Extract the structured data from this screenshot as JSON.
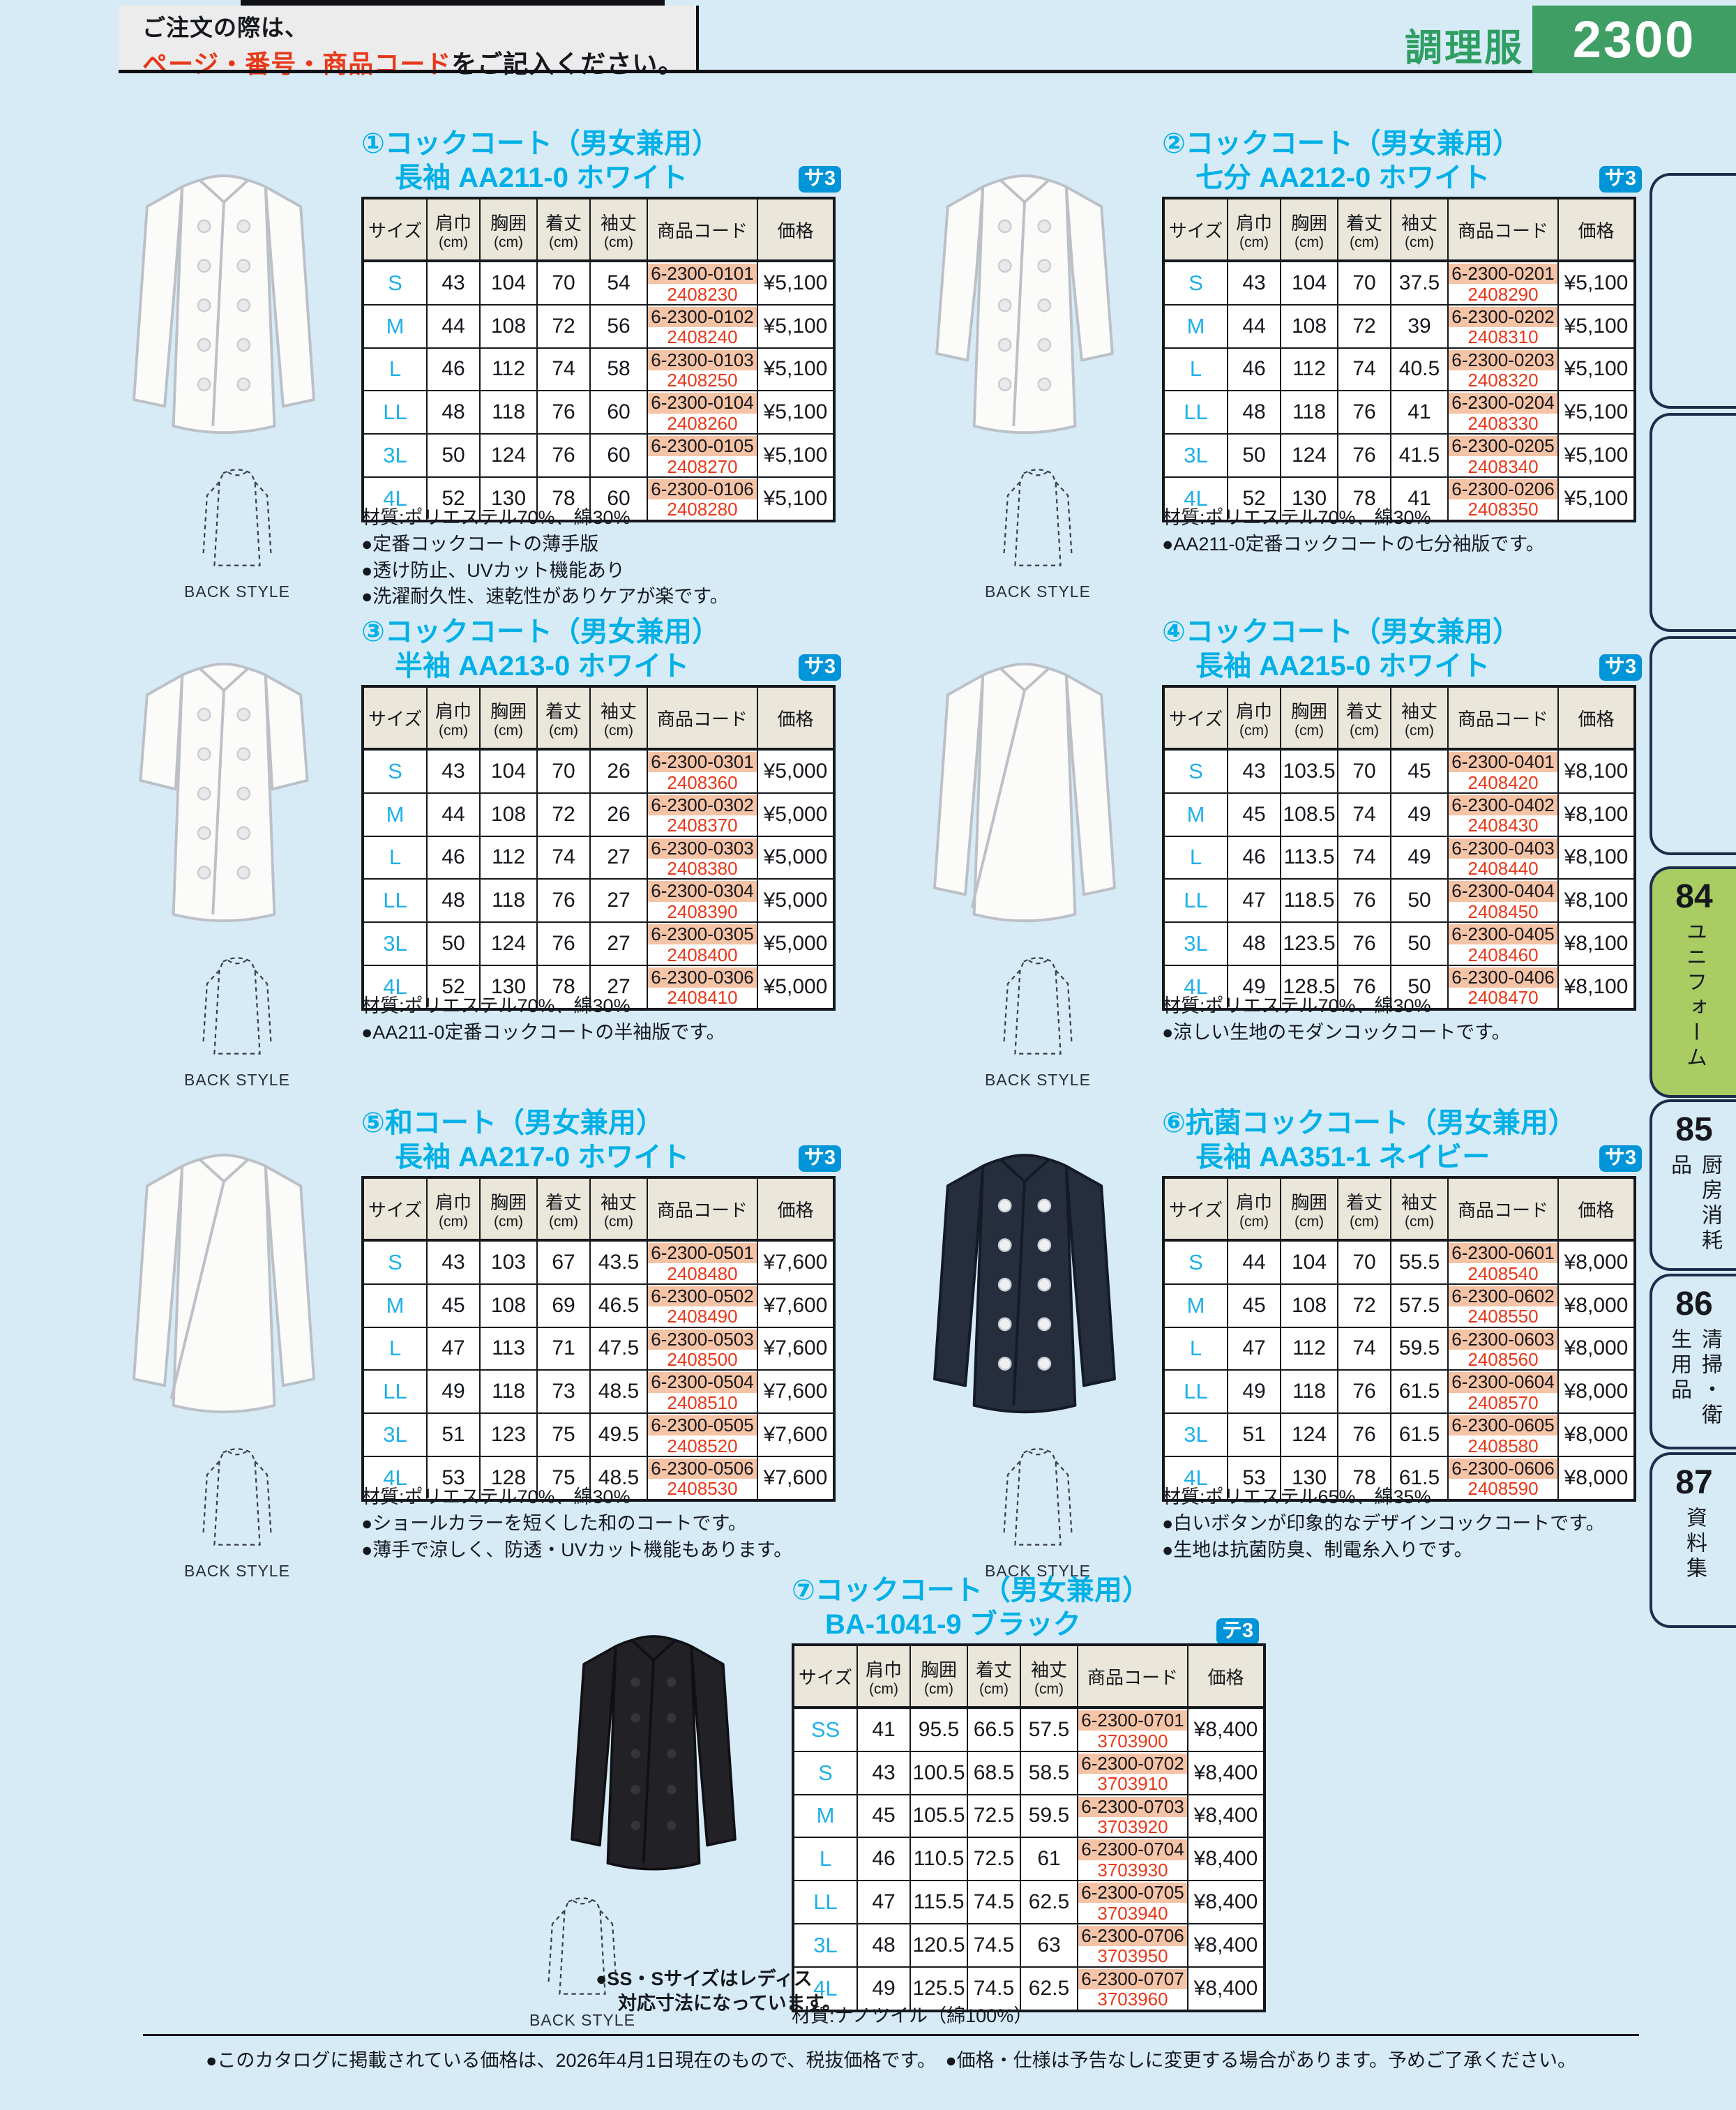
{
  "header": {
    "order_note_line1": "ご注文の際は、",
    "order_note_highlight": "ページ・番号・商品コード",
    "order_note_rest": "をご記入ください。",
    "category": "調理服",
    "page_number": "2300"
  },
  "colors": {
    "page_number_bg": "#3f9e63",
    "category_text": "#2f9e63",
    "title_accent": "#00b0e6",
    "badge_bg": "#0094d8",
    "code_highlight": "#f5c3a6",
    "code_red": "#e8381a",
    "tab_active_green": "#a9cc63",
    "page_bg": "#d7ebf7"
  },
  "sidebar": {
    "tabs": [
      {
        "number": "",
        "label": "",
        "active": false
      },
      {
        "number": "",
        "label": "",
        "active": false
      },
      {
        "number": "",
        "label": "",
        "active": false
      },
      {
        "number": "84",
        "label": "ユニフォーム",
        "active": true
      },
      {
        "number": "85",
        "label": "厨房消耗品",
        "active": false
      },
      {
        "number": "86",
        "label": "清掃・衛生用品",
        "active": false
      },
      {
        "number": "87",
        "label": "資料集",
        "active": false
      }
    ]
  },
  "table_headers": [
    {
      "label": "サイズ",
      "unit": ""
    },
    {
      "label": "肩巾",
      "unit": "(cm)"
    },
    {
      "label": "胸囲",
      "unit": "(cm)"
    },
    {
      "label": "着丈",
      "unit": "(cm)"
    },
    {
      "label": "袖丈",
      "unit": "(cm)"
    },
    {
      "label": "商品コード",
      "unit": ""
    },
    {
      "label": "価格",
      "unit": ""
    }
  ],
  "back_style_label": "BACK STYLE",
  "products": [
    {
      "number_title": "①コックコート（男女兼用）",
      "subtitle": "長袖 AA211-0 ホワイト",
      "badge": "サ3",
      "material": "材質:ポリエステル70%、綿30%",
      "notes": [
        "●定番コックコートの薄手版",
        "●透け防止、UVカット機能あり",
        "●洗濯耐久性、速乾性がありケアが楽です。"
      ],
      "photo": {
        "garment": "chef-coat",
        "color_name": "ホワイト",
        "color_hex": "#fbfbfa",
        "sleeve": "long",
        "closure": "double"
      },
      "rows": [
        {
          "size": "S",
          "shoulder": "43",
          "chest": "104",
          "length": "70",
          "sleeve": "54",
          "code1": "6-2300-0101",
          "code2": "2408230",
          "price": "¥5,100"
        },
        {
          "size": "M",
          "shoulder": "44",
          "chest": "108",
          "length": "72",
          "sleeve": "56",
          "code1": "6-2300-0102",
          "code2": "2408240",
          "price": "¥5,100"
        },
        {
          "size": "L",
          "shoulder": "46",
          "chest": "112",
          "length": "74",
          "sleeve": "58",
          "code1": "6-2300-0103",
          "code2": "2408250",
          "price": "¥5,100"
        },
        {
          "size": "LL",
          "shoulder": "48",
          "chest": "118",
          "length": "76",
          "sleeve": "60",
          "code1": "6-2300-0104",
          "code2": "2408260",
          "price": "¥5,100"
        },
        {
          "size": "3L",
          "shoulder": "50",
          "chest": "124",
          "length": "76",
          "sleeve": "60",
          "code1": "6-2300-0105",
          "code2": "2408270",
          "price": "¥5,100"
        },
        {
          "size": "4L",
          "shoulder": "52",
          "chest": "130",
          "length": "78",
          "sleeve": "60",
          "code1": "6-2300-0106",
          "code2": "2408280",
          "price": "¥5,100"
        }
      ]
    },
    {
      "number_title": "②コックコート（男女兼用）",
      "subtitle": "七分 AA212-0 ホワイト",
      "badge": "サ3",
      "material": "材質:ポリエステル70%、綿30%",
      "notes": [
        "●AA211-0定番コックコートの七分袖版です。"
      ],
      "photo": {
        "garment": "chef-coat",
        "color_name": "ホワイト",
        "color_hex": "#fbfbfa",
        "sleeve": "three-quarter",
        "closure": "double"
      },
      "rows": [
        {
          "size": "S",
          "shoulder": "43",
          "chest": "104",
          "length": "70",
          "sleeve": "37.5",
          "code1": "6-2300-0201",
          "code2": "2408290",
          "price": "¥5,100"
        },
        {
          "size": "M",
          "shoulder": "44",
          "chest": "108",
          "length": "72",
          "sleeve": "39",
          "code1": "6-2300-0202",
          "code2": "2408310",
          "price": "¥5,100"
        },
        {
          "size": "L",
          "shoulder": "46",
          "chest": "112",
          "length": "74",
          "sleeve": "40.5",
          "code1": "6-2300-0203",
          "code2": "2408320",
          "price": "¥5,100"
        },
        {
          "size": "LL",
          "shoulder": "48",
          "chest": "118",
          "length": "76",
          "sleeve": "41",
          "code1": "6-2300-0204",
          "code2": "2408330",
          "price": "¥5,100"
        },
        {
          "size": "3L",
          "shoulder": "50",
          "chest": "124",
          "length": "76",
          "sleeve": "41.5",
          "code1": "6-2300-0205",
          "code2": "2408340",
          "price": "¥5,100"
        },
        {
          "size": "4L",
          "shoulder": "52",
          "chest": "130",
          "length": "78",
          "sleeve": "41",
          "code1": "6-2300-0206",
          "code2": "2408350",
          "price": "¥5,100"
        }
      ]
    },
    {
      "number_title": "③コックコート（男女兼用）",
      "subtitle": "半袖 AA213-0 ホワイト",
      "badge": "サ3",
      "material": "材質:ポリエステル70%、綿30%",
      "notes": [
        "●AA211-0定番コックコートの半袖版です。"
      ],
      "photo": {
        "garment": "chef-coat",
        "color_name": "ホワイト",
        "color_hex": "#fbfbfa",
        "sleeve": "short",
        "closure": "double"
      },
      "rows": [
        {
          "size": "S",
          "shoulder": "43",
          "chest": "104",
          "length": "70",
          "sleeve": "26",
          "code1": "6-2300-0301",
          "code2": "2408360",
          "price": "¥5,000"
        },
        {
          "size": "M",
          "shoulder": "44",
          "chest": "108",
          "length": "72",
          "sleeve": "26",
          "code1": "6-2300-0302",
          "code2": "2408370",
          "price": "¥5,000"
        },
        {
          "size": "L",
          "shoulder": "46",
          "chest": "112",
          "length": "74",
          "sleeve": "27",
          "code1": "6-2300-0303",
          "code2": "2408380",
          "price": "¥5,000"
        },
        {
          "size": "LL",
          "shoulder": "48",
          "chest": "118",
          "length": "76",
          "sleeve": "27",
          "code1": "6-2300-0304",
          "code2": "2408390",
          "price": "¥5,000"
        },
        {
          "size": "3L",
          "shoulder": "50",
          "chest": "124",
          "length": "76",
          "sleeve": "27",
          "code1": "6-2300-0305",
          "code2": "2408400",
          "price": "¥5,000"
        },
        {
          "size": "4L",
          "shoulder": "52",
          "chest": "130",
          "length": "78",
          "sleeve": "27",
          "code1": "6-2300-0306",
          "code2": "2408410",
          "price": "¥5,000"
        }
      ]
    },
    {
      "number_title": "④コックコート（男女兼用）",
      "subtitle": "長袖 AA215-0 ホワイト",
      "badge": "サ3",
      "material": "材質:ポリエステル70%、綿30%",
      "notes": [
        "●涼しい生地のモダンコックコートです。"
      ],
      "photo": {
        "garment": "chef-coat",
        "color_name": "ホワイト",
        "color_hex": "#fbfbfa",
        "sleeve": "long",
        "closure": "wrap"
      },
      "rows": [
        {
          "size": "S",
          "shoulder": "43",
          "chest": "103.5",
          "length": "70",
          "sleeve": "45",
          "code1": "6-2300-0401",
          "code2": "2408420",
          "price": "¥8,100"
        },
        {
          "size": "M",
          "shoulder": "45",
          "chest": "108.5",
          "length": "74",
          "sleeve": "49",
          "code1": "6-2300-0402",
          "code2": "2408430",
          "price": "¥8,100"
        },
        {
          "size": "L",
          "shoulder": "46",
          "chest": "113.5",
          "length": "74",
          "sleeve": "49",
          "code1": "6-2300-0403",
          "code2": "2408440",
          "price": "¥8,100"
        },
        {
          "size": "LL",
          "shoulder": "47",
          "chest": "118.5",
          "length": "76",
          "sleeve": "50",
          "code1": "6-2300-0404",
          "code2": "2408450",
          "price": "¥8,100"
        },
        {
          "size": "3L",
          "shoulder": "48",
          "chest": "123.5",
          "length": "76",
          "sleeve": "50",
          "code1": "6-2300-0405",
          "code2": "2408460",
          "price": "¥8,100"
        },
        {
          "size": "4L",
          "shoulder": "49",
          "chest": "128.5",
          "length": "76",
          "sleeve": "50",
          "code1": "6-2300-0406",
          "code2": "2408470",
          "price": "¥8,100"
        }
      ]
    },
    {
      "number_title": "⑤和コート（男女兼用）",
      "subtitle": "長袖 AA217-0 ホワイト",
      "badge": "サ3",
      "material": "材質:ポリエステル70%、綿30%",
      "notes": [
        "●ショールカラーを短くした和のコートです。",
        "●薄手で涼しく、防透・UVカット機能もあります。"
      ],
      "photo": {
        "garment": "wa-coat",
        "color_name": "ホワイト",
        "color_hex": "#fbfbfa",
        "sleeve": "long",
        "closure": "wrap"
      },
      "rows": [
        {
          "size": "S",
          "shoulder": "43",
          "chest": "103",
          "length": "67",
          "sleeve": "43.5",
          "code1": "6-2300-0501",
          "code2": "2408480",
          "price": "¥7,600"
        },
        {
          "size": "M",
          "shoulder": "45",
          "chest": "108",
          "length": "69",
          "sleeve": "46.5",
          "code1": "6-2300-0502",
          "code2": "2408490",
          "price": "¥7,600"
        },
        {
          "size": "L",
          "shoulder": "47",
          "chest": "113",
          "length": "71",
          "sleeve": "47.5",
          "code1": "6-2300-0503",
          "code2": "2408500",
          "price": "¥7,600"
        },
        {
          "size": "LL",
          "shoulder": "49",
          "chest": "118",
          "length": "73",
          "sleeve": "48.5",
          "code1": "6-2300-0504",
          "code2": "2408510",
          "price": "¥7,600"
        },
        {
          "size": "3L",
          "shoulder": "51",
          "chest": "123",
          "length": "75",
          "sleeve": "49.5",
          "code1": "6-2300-0505",
          "code2": "2408520",
          "price": "¥7,600"
        },
        {
          "size": "4L",
          "shoulder": "53",
          "chest": "128",
          "length": "75",
          "sleeve": "48.5",
          "code1": "6-2300-0506",
          "code2": "2408530",
          "price": "¥7,600"
        }
      ]
    },
    {
      "number_title": "⑥抗菌コックコート（男女兼用）",
      "subtitle": "長袖 AA351-1 ネイビー",
      "badge": "サ3",
      "material": "材質:ポリエステル65%、綿35%",
      "notes": [
        "●白いボタンが印象的なデザインコックコートです。",
        "●生地は抗菌防臭、制電糸入りです。"
      ],
      "photo": {
        "garment": "chef-coat",
        "color_name": "ネイビー",
        "color_hex": "#262e3e",
        "sleeve": "long",
        "closure": "double"
      },
      "rows": [
        {
          "size": "S",
          "shoulder": "44",
          "chest": "104",
          "length": "70",
          "sleeve": "55.5",
          "code1": "6-2300-0601",
          "code2": "2408540",
          "price": "¥8,000"
        },
        {
          "size": "M",
          "shoulder": "45",
          "chest": "108",
          "length": "72",
          "sleeve": "57.5",
          "code1": "6-2300-0602",
          "code2": "2408550",
          "price": "¥8,000"
        },
        {
          "size": "L",
          "shoulder": "47",
          "chest": "112",
          "length": "74",
          "sleeve": "59.5",
          "code1": "6-2300-0603",
          "code2": "2408560",
          "price": "¥8,000"
        },
        {
          "size": "LL",
          "shoulder": "49",
          "chest": "118",
          "length": "76",
          "sleeve": "61.5",
          "code1": "6-2300-0604",
          "code2": "2408570",
          "price": "¥8,000"
        },
        {
          "size": "3L",
          "shoulder": "51",
          "chest": "124",
          "length": "76",
          "sleeve": "61.5",
          "code1": "6-2300-0605",
          "code2": "2408580",
          "price": "¥8,000"
        },
        {
          "size": "4L",
          "shoulder": "53",
          "chest": "130",
          "length": "78",
          "sleeve": "61.5",
          "code1": "6-2300-0606",
          "code2": "2408590",
          "price": "¥8,000"
        }
      ]
    },
    {
      "number_title": "⑦コックコート（男女兼用）",
      "subtitle": "BA-1041-9 ブラック",
      "badge": "テ3",
      "material": "材質:ナノツイル（綿100%）",
      "notes": [],
      "photo_notes": [
        "●SS・Sサイズはレディス",
        "対応寸法になっています。"
      ],
      "photo": {
        "garment": "chef-coat",
        "color_name": "ブラック",
        "color_hex": "#222226",
        "sleeve": "long",
        "closure": "double"
      },
      "rows": [
        {
          "size": "SS",
          "shoulder": "41",
          "chest": "95.5",
          "length": "66.5",
          "sleeve": "57.5",
          "code1": "6-2300-0701",
          "code2": "3703900",
          "price": "¥8,400"
        },
        {
          "size": "S",
          "shoulder": "43",
          "chest": "100.5",
          "length": "68.5",
          "sleeve": "58.5",
          "code1": "6-2300-0702",
          "code2": "3703910",
          "price": "¥8,400"
        },
        {
          "size": "M",
          "shoulder": "45",
          "chest": "105.5",
          "length": "72.5",
          "sleeve": "59.5",
          "code1": "6-2300-0703",
          "code2": "3703920",
          "price": "¥8,400"
        },
        {
          "size": "L",
          "shoulder": "46",
          "chest": "110.5",
          "length": "72.5",
          "sleeve": "61",
          "code1": "6-2300-0704",
          "code2": "3703930",
          "price": "¥8,400"
        },
        {
          "size": "LL",
          "shoulder": "47",
          "chest": "115.5",
          "length": "74.5",
          "sleeve": "62.5",
          "code1": "6-2300-0705",
          "code2": "3703940",
          "price": "¥8,400"
        },
        {
          "size": "3L",
          "shoulder": "48",
          "chest": "120.5",
          "length": "74.5",
          "sleeve": "63",
          "code1": "6-2300-0706",
          "code2": "3703950",
          "price": "¥8,400"
        },
        {
          "size": "4L",
          "shoulder": "49",
          "chest": "125.5",
          "length": "74.5",
          "sleeve": "62.5",
          "code1": "6-2300-0707",
          "code2": "3703960",
          "price": "¥8,400"
        }
      ]
    }
  ],
  "footer": {
    "text": "●このカタログに掲載されている価格は、2026年4月1日現在のもので、税抜価格です。　●価格・仕様は予告なしに変更する場合があります。予めご了承ください。"
  }
}
